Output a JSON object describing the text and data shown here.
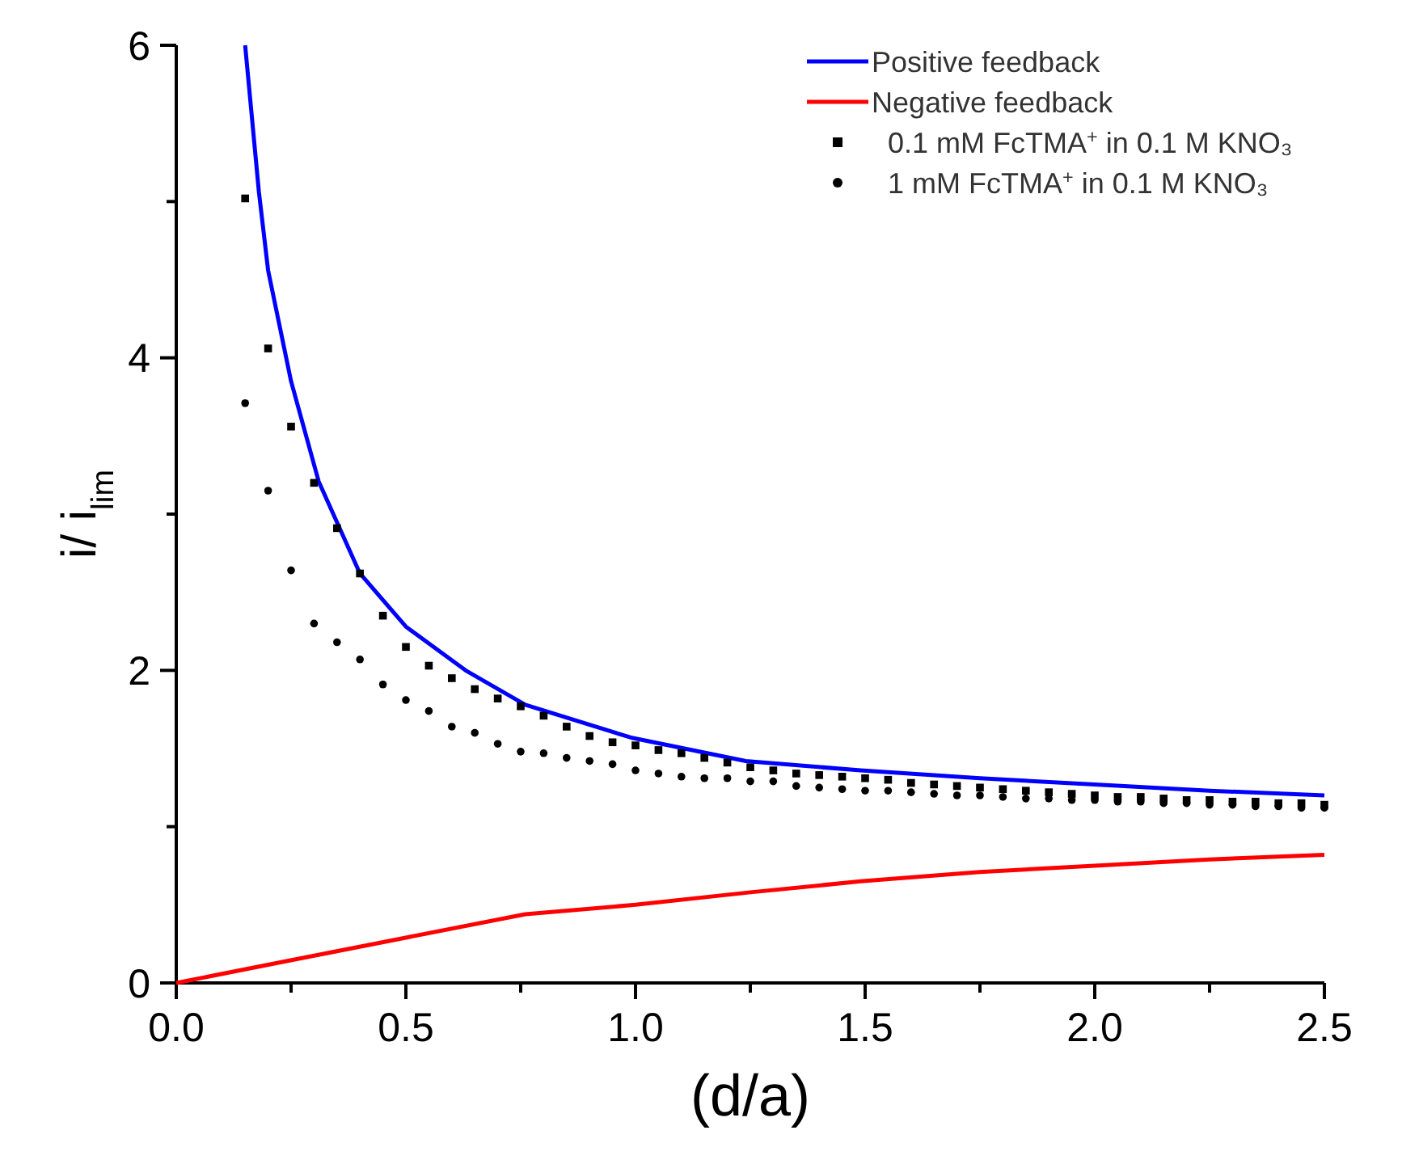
{
  "chart_data": {
    "type": "line",
    "xlabel": "(d/a)",
    "ylabel": "i/ i$_{lim}$",
    "xlim": [
      0,
      2.5
    ],
    "ylim": [
      0,
      6
    ],
    "xticks": [
      {
        "value": 0,
        "label": "0.0"
      },
      {
        "value": 0.25,
        "label": null
      },
      0.5,
      {
        "value": 0.75,
        "label": null
      },
      {
        "value": 1,
        "label": "1.0"
      },
      {
        "value": 1.25,
        "label": null
      },
      1.5,
      {
        "value": 1.75,
        "label": null
      },
      {
        "value": 2,
        "label": "2.0"
      },
      {
        "value": 2.25,
        "label": null
      },
      2.5
    ],
    "yticks": [
      0,
      {
        "value": 1,
        "label": null
      },
      2,
      {
        "value": 3,
        "label": null
      },
      4,
      {
        "value": 5,
        "label": null
      },
      6
    ],
    "grid": false,
    "legend": "top right",
    "series": [
      {
        "name": "Positive feedback",
        "color": "#0000ff",
        "marker": "none",
        "x": [
          0.15,
          0.18,
          0.2,
          0.25,
          0.31,
          0.4,
          0.5,
          0.63,
          0.76,
          0.99,
          1.24,
          1.49,
          1.75,
          2.0,
          2.25,
          2.5
        ],
        "values": [
          6.0,
          5.06,
          4.56,
          3.85,
          3.21,
          2.62,
          2.28,
          2.0,
          1.78,
          1.57,
          1.42,
          1.36,
          1.31,
          1.27,
          1.23,
          1.2
        ]
      },
      {
        "name": "Negative feedback",
        "color": "#ff0000",
        "marker": "none",
        "x": [
          0,
          0.24,
          0.5,
          0.76,
          1.0,
          1.25,
          1.49,
          1.75,
          2.0,
          2.25,
          2.5
        ],
        "values": [
          0,
          0.14,
          0.29,
          0.44,
          0.5,
          0.58,
          0.65,
          0.71,
          0.75,
          0.79,
          0.82
        ]
      },
      {
        "name": "0.1 mM FcTMA$^{+}$ in 0.1 M KNO₃",
        "type": "scatter",
        "color": "#000000",
        "marker": "square",
        "x": [
          0.15,
          0.2,
          0.25,
          0.3,
          0.35,
          0.4,
          0.45,
          0.5,
          0.55,
          0.6,
          0.65,
          0.7,
          0.75,
          0.8,
          0.85,
          0.9,
          0.95,
          1.0,
          1.05,
          1.1,
          1.15,
          1.2,
          1.25,
          1.3,
          1.35,
          1.4,
          1.45,
          1.5,
          1.55,
          1.6,
          1.65,
          1.7,
          1.75,
          1.8,
          1.85,
          1.9,
          1.95,
          2.0,
          2.05,
          2.1,
          2.15,
          2.2,
          2.25,
          2.3,
          2.35,
          2.4,
          2.45,
          2.5
        ],
        "values": [
          5.02,
          4.06,
          3.56,
          3.2,
          2.91,
          2.62,
          2.35,
          2.15,
          2.03,
          1.95,
          1.88,
          1.82,
          1.77,
          1.71,
          1.64,
          1.58,
          1.54,
          1.52,
          1.49,
          1.47,
          1.44,
          1.41,
          1.38,
          1.36,
          1.34,
          1.33,
          1.32,
          1.31,
          1.3,
          1.28,
          1.27,
          1.26,
          1.25,
          1.24,
          1.23,
          1.22,
          1.21,
          1.2,
          1.19,
          1.19,
          1.18,
          1.17,
          1.17,
          1.16,
          1.16,
          1.15,
          1.15,
          1.14
        ]
      },
      {
        "name": "1 mM FcTMA$^{+}$ in 0.1 M KNO₃",
        "type": "scatter",
        "color": "#000000",
        "marker": "circle",
        "x": [
          0.15,
          0.2,
          0.25,
          0.3,
          0.35,
          0.4,
          0.45,
          0.5,
          0.55,
          0.6,
          0.65,
          0.7,
          0.75,
          0.8,
          0.85,
          0.9,
          0.95,
          1.0,
          1.05,
          1.1,
          1.15,
          1.2,
          1.25,
          1.3,
          1.35,
          1.4,
          1.45,
          1.5,
          1.55,
          1.6,
          1.65,
          1.7,
          1.75,
          1.8,
          1.85,
          1.9,
          1.95,
          2.0,
          2.05,
          2.1,
          2.15,
          2.2,
          2.25,
          2.3,
          2.35,
          2.4,
          2.45,
          2.5
        ],
        "values": [
          3.71,
          3.15,
          2.64,
          2.3,
          2.18,
          2.07,
          1.91,
          1.81,
          1.74,
          1.64,
          1.6,
          1.53,
          1.48,
          1.47,
          1.44,
          1.42,
          1.4,
          1.36,
          1.34,
          1.32,
          1.31,
          1.31,
          1.29,
          1.29,
          1.26,
          1.25,
          1.24,
          1.23,
          1.23,
          1.22,
          1.21,
          1.2,
          1.2,
          1.19,
          1.18,
          1.18,
          1.17,
          1.17,
          1.16,
          1.16,
          1.15,
          1.15,
          1.14,
          1.14,
          1.13,
          1.13,
          1.12,
          1.12
        ]
      }
    ]
  }
}
